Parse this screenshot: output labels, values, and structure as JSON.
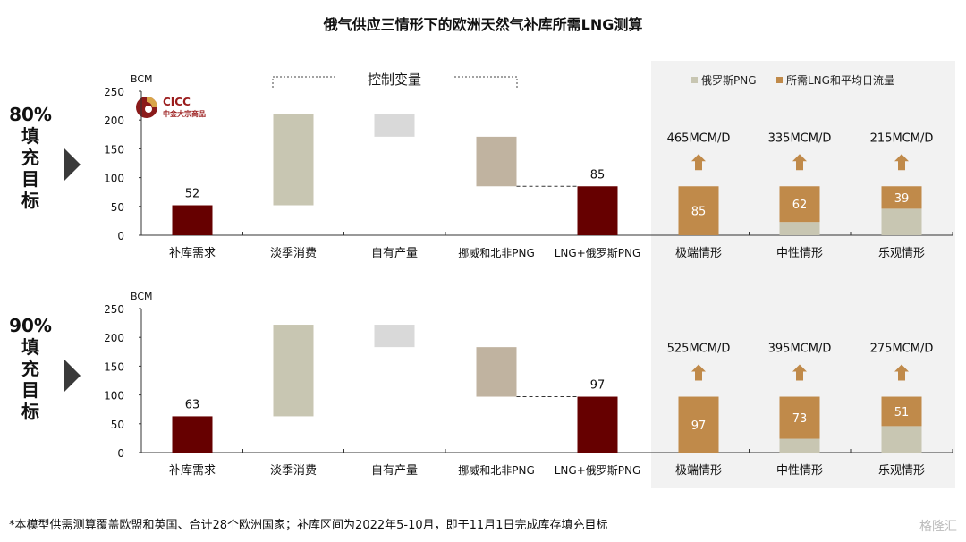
{
  "title": "俄气供应三情形下的欧洲天然气补库所需LNG测算",
  "footer": "*本模型供需测算覆盖欧盟和英国、合计28个欧洲国家；补库区间为2022年5-10月，即于11月1日完成库存填充目标",
  "watermark": "格隆汇",
  "logo": {
    "name": "CICC",
    "sub": "中金大宗商品"
  },
  "control_label": "控制变量",
  "colors": {
    "demand": "#660000",
    "offseason": "#c8c6b2",
    "own": "#d9d9d9",
    "norway": "#c0b3a0",
    "lng": "#c08a4a",
    "russia": "#c8c6b2",
    "panel_bg": "#f2f2f2"
  },
  "legend": [
    {
      "label": "俄罗斯PNG",
      "color": "#c8c6b2"
    },
    {
      "label": "所需LNG和平均日流量",
      "color": "#c08a4a"
    }
  ],
  "chart_data": [
    {
      "type": "bar",
      "side_label": [
        "80%",
        "填",
        "充",
        "目",
        "标"
      ],
      "ylabel": "BCM",
      "ylim": [
        0,
        250
      ],
      "yticks": [
        0,
        50,
        100,
        150,
        200,
        250
      ],
      "categories": [
        "补库需求",
        "淡季消费",
        "自有产量",
        "挪威和北非PNG",
        "LNG+俄罗斯PNG",
        "极端情形",
        "中性情形",
        "乐观情形"
      ],
      "waterfall": [
        {
          "range": [
            0,
            52
          ],
          "label": "52",
          "color": "demand"
        },
        {
          "range": [
            52,
            210
          ],
          "label": "",
          "color": "offseason"
        },
        {
          "range": [
            171,
            210
          ],
          "label": "",
          "color": "own"
        },
        {
          "range": [
            85,
            171
          ],
          "label": "",
          "color": "norway"
        },
        {
          "range": [
            0,
            85
          ],
          "label": "85",
          "color": "demand"
        }
      ],
      "scenarios": [
        {
          "russia_png": 0,
          "lng": 85,
          "lng_label": "85",
          "flow": "465MCM/D"
        },
        {
          "russia_png": 23,
          "lng": 62,
          "lng_label": "62",
          "flow": "335MCM/D"
        },
        {
          "russia_png": 46,
          "lng": 39,
          "lng_label": "39",
          "flow": "215MCM/D"
        }
      ]
    },
    {
      "type": "bar",
      "side_label": [
        "90%",
        "填",
        "充",
        "目",
        "标"
      ],
      "ylabel": "BCM",
      "ylim": [
        0,
        250
      ],
      "yticks": [
        0,
        50,
        100,
        150,
        200,
        250
      ],
      "categories": [
        "补库需求",
        "淡季消费",
        "自有产量",
        "挪威和北非PNG",
        "LNG+俄罗斯PNG",
        "极端情形",
        "中性情形",
        "乐观情形"
      ],
      "waterfall": [
        {
          "range": [
            0,
            63
          ],
          "label": "63",
          "color": "demand"
        },
        {
          "range": [
            63,
            222
          ],
          "label": "",
          "color": "offseason"
        },
        {
          "range": [
            183,
            222
          ],
          "label": "",
          "color": "own"
        },
        {
          "range": [
            97,
            183
          ],
          "label": "",
          "color": "norway"
        },
        {
          "range": [
            0,
            97
          ],
          "label": "97",
          "color": "demand"
        }
      ],
      "scenarios": [
        {
          "russia_png": 0,
          "lng": 97,
          "lng_label": "97",
          "flow": "525MCM/D"
        },
        {
          "russia_png": 24,
          "lng": 73,
          "lng_label": "73",
          "flow": "395MCM/D"
        },
        {
          "russia_png": 46,
          "lng": 51,
          "lng_label": "51",
          "flow": "275MCM/D"
        }
      ]
    }
  ]
}
